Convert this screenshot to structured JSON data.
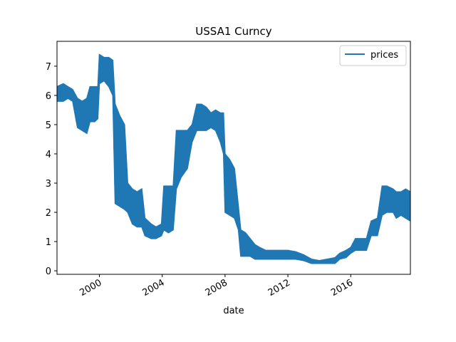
{
  "chart_data": {
    "type": "line",
    "title": "USSA1 Curncy",
    "xlabel": "date",
    "ylabel": "",
    "xlim": [
      1997.3,
      2019.8
    ],
    "ylim": [
      -0.12,
      7.85
    ],
    "x_ticks": [
      2000,
      2004,
      2008,
      2012,
      2016
    ],
    "x_tick_labels": [
      "2000",
      "2004",
      "2008",
      "2012",
      "2016"
    ],
    "y_ticks": [
      0,
      1,
      2,
      3,
      4,
      5,
      6,
      7
    ],
    "y_tick_labels": [
      "0",
      "1",
      "2",
      "3",
      "4",
      "5",
      "6",
      "7"
    ],
    "legend": {
      "position": "upper right",
      "entries": [
        "prices"
      ]
    },
    "colors": {
      "series": "#1f77b4"
    },
    "series": [
      {
        "name": "prices",
        "band": [
          [
            1997.3,
            5.8,
            6.3
          ],
          [
            1997.7,
            5.8,
            6.4
          ],
          [
            1998.0,
            5.9,
            6.3
          ],
          [
            1998.3,
            5.8,
            6.2
          ],
          [
            1998.6,
            4.9,
            5.9
          ],
          [
            1998.9,
            4.8,
            5.8
          ],
          [
            1999.2,
            4.7,
            5.9
          ],
          [
            1999.4,
            5.1,
            6.3
          ],
          [
            1999.7,
            5.1,
            6.3
          ],
          [
            1999.9,
            5.2,
            6.3
          ],
          [
            2000.0,
            6.4,
            7.4
          ],
          [
            2000.3,
            6.5,
            7.3
          ],
          [
            2000.6,
            6.3,
            7.3
          ],
          [
            2000.85,
            6.0,
            7.2
          ],
          [
            2001.0,
            2.3,
            5.7
          ],
          [
            2001.3,
            2.2,
            5.3
          ],
          [
            2001.6,
            2.1,
            5.0
          ],
          [
            2001.8,
            2.0,
            3.0
          ],
          [
            2002.1,
            1.6,
            2.8
          ],
          [
            2002.4,
            1.5,
            2.7
          ],
          [
            2002.7,
            1.5,
            2.8
          ],
          [
            2002.9,
            1.2,
            1.8
          ],
          [
            2003.3,
            1.1,
            1.6
          ],
          [
            2003.6,
            1.1,
            1.5
          ],
          [
            2003.95,
            1.2,
            1.6
          ],
          [
            2004.1,
            1.4,
            2.9
          ],
          [
            2004.4,
            1.3,
            2.9
          ],
          [
            2004.7,
            1.4,
            2.9
          ],
          [
            2004.9,
            2.8,
            4.8
          ],
          [
            2005.2,
            3.2,
            4.8
          ],
          [
            2005.6,
            3.5,
            4.8
          ],
          [
            2005.9,
            4.4,
            5.0
          ],
          [
            2006.2,
            4.8,
            5.7
          ],
          [
            2006.5,
            4.8,
            5.7
          ],
          [
            2006.8,
            4.8,
            5.6
          ],
          [
            2007.1,
            4.9,
            5.4
          ],
          [
            2007.4,
            4.8,
            5.5
          ],
          [
            2007.7,
            4.4,
            5.4
          ],
          [
            2007.9,
            4.0,
            5.4
          ],
          [
            2008.0,
            2.0,
            4.0
          ],
          [
            2008.3,
            1.9,
            3.8
          ],
          [
            2008.6,
            1.8,
            3.5
          ],
          [
            2008.85,
            1.4,
            2.2
          ],
          [
            2009.0,
            0.5,
            1.4
          ],
          [
            2009.3,
            0.5,
            1.3
          ],
          [
            2009.6,
            0.5,
            1.1
          ],
          [
            2009.9,
            0.4,
            0.9
          ],
          [
            2010.2,
            0.4,
            0.8
          ],
          [
            2010.6,
            0.4,
            0.7
          ],
          [
            2011.0,
            0.4,
            0.7
          ],
          [
            2011.5,
            0.4,
            0.7
          ],
          [
            2012.0,
            0.4,
            0.7
          ],
          [
            2012.5,
            0.4,
            0.65
          ],
          [
            2013.0,
            0.35,
            0.55
          ],
          [
            2013.5,
            0.25,
            0.4
          ],
          [
            2014.0,
            0.25,
            0.35
          ],
          [
            2014.5,
            0.25,
            0.4
          ],
          [
            2015.0,
            0.25,
            0.45
          ],
          [
            2015.3,
            0.4,
            0.6
          ],
          [
            2015.7,
            0.45,
            0.7
          ],
          [
            2016.0,
            0.6,
            0.8
          ],
          [
            2016.3,
            0.7,
            1.1
          ],
          [
            2016.7,
            0.7,
            1.1
          ],
          [
            2017.0,
            0.7,
            1.1
          ],
          [
            2017.3,
            1.2,
            1.7
          ],
          [
            2017.7,
            1.2,
            1.8
          ],
          [
            2018.0,
            1.9,
            2.9
          ],
          [
            2018.3,
            2.0,
            2.9
          ],
          [
            2018.7,
            2.0,
            2.8
          ],
          [
            2018.9,
            1.8,
            2.7
          ],
          [
            2019.2,
            1.9,
            2.7
          ],
          [
            2019.5,
            1.8,
            2.8
          ],
          [
            2019.8,
            1.7,
            2.7
          ]
        ]
      }
    ]
  }
}
